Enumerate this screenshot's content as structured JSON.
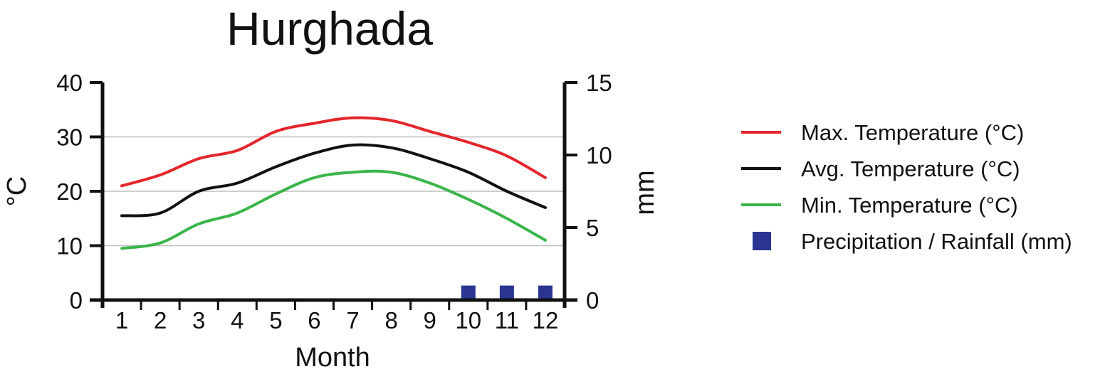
{
  "chart_data": {
    "type": "line",
    "title": "Hurghada",
    "xlabel": "Month",
    "ylabel": "°C",
    "y2label": "mm",
    "categories": [
      "1",
      "2",
      "3",
      "4",
      "5",
      "6",
      "7",
      "8",
      "9",
      "10",
      "11",
      "12"
    ],
    "ylim": [
      0,
      40
    ],
    "y2lim": [
      0,
      15
    ],
    "yticks": [
      0,
      10,
      20,
      30,
      40
    ],
    "y2ticks": [
      0,
      5,
      10,
      15
    ],
    "grid": true,
    "legend": "right",
    "series": [
      {
        "name": "Max. Temperature (°C)",
        "color": "#e3262b",
        "axis": "left",
        "values": [
          21,
          23,
          26,
          27.5,
          31,
          32.5,
          33.5,
          33,
          31,
          29,
          26.5,
          22.5
        ]
      },
      {
        "name": "Avg. Temperature (°C)",
        "color": "#111111",
        "axis": "left",
        "values": [
          15.5,
          16,
          20,
          21.5,
          24.5,
          27,
          28.5,
          28,
          26,
          23.5,
          20,
          17
        ]
      },
      {
        "name": "Min. Temperature (°C)",
        "color": "#3ab54a",
        "axis": "left",
        "values": [
          9.5,
          10.5,
          14,
          16,
          19.5,
          22.5,
          23.5,
          23.5,
          21.5,
          18.5,
          15,
          11
        ]
      },
      {
        "name": "Precipitation / Rainfall (mm)",
        "color": "#2b3591",
        "axis": "right",
        "type": "bar",
        "values": [
          0,
          0,
          0,
          0,
          0,
          0,
          0,
          0,
          0,
          1,
          1,
          1
        ]
      }
    ]
  }
}
